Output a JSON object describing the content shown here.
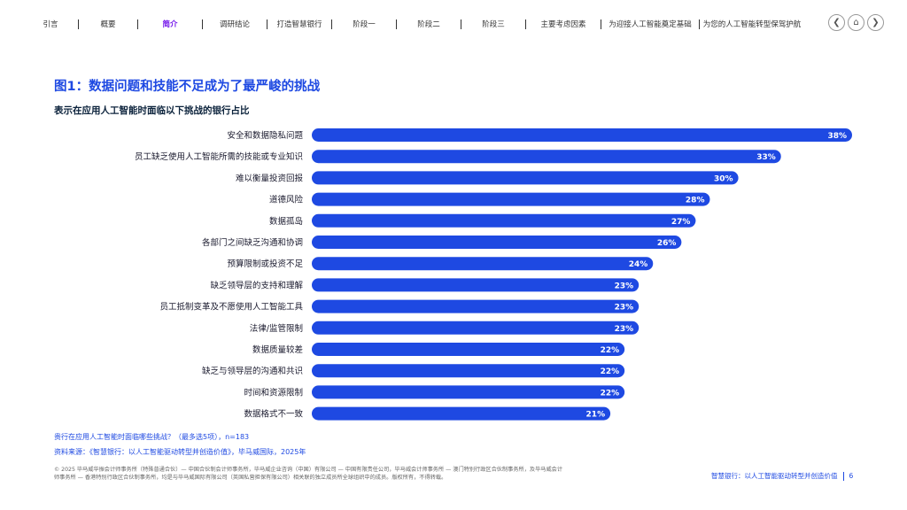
{
  "nav": {
    "items": [
      "引言",
      "概要",
      "简介",
      "调研结论",
      "打造智慧银行",
      "阶段一",
      "阶段二",
      "阶段三",
      "主要考虑因素",
      "为迎接人工智能奠定基础",
      "为您的人工智能转型保驾护航"
    ],
    "active_index": 2,
    "controls": [
      "prev-icon",
      "home-icon",
      "next-icon"
    ]
  },
  "figure": {
    "title": "图1：数据问题和技能不足成为了最严峻的挑战",
    "subtitle": "表示在应用人工智能时面临以下挑战的银行占比"
  },
  "chart_data": {
    "type": "bar",
    "orientation": "horizontal",
    "categories": [
      "安全和数据隐私问题",
      "员工缺乏使用人工智能所需的技能或专业知识",
      "难以衡量投资回报",
      "道德风险",
      "数据孤岛",
      "各部门之间缺乏沟通和协调",
      "预算限制或投资不足",
      "缺乏领导层的支持和理解",
      "员工抵制变革及不愿使用人工智能工具",
      "法律/监管限制",
      "数据质量较差",
      "缺乏与领导层的沟通和共识",
      "时间和资源限制",
      "数据格式不一致"
    ],
    "values": [
      38,
      33,
      30,
      28,
      27,
      26,
      24,
      23,
      23,
      23,
      22,
      22,
      22,
      21
    ],
    "value_labels": [
      "38%",
      "33%",
      "30%",
      "28%",
      "27%",
      "26%",
      "24%",
      "23%",
      "23%",
      "23%",
      "22%",
      "22%",
      "22%",
      "21%"
    ],
    "xlim": [
      0,
      38
    ],
    "bar_color": "#1e49e2"
  },
  "notes": {
    "question": "贵行在应用人工智能时面临哪些挑战？（最多选5项），n=183",
    "source": "资料来源：《智慧银行：以人工智能驱动转型并创造价值》，毕马威国际，2025年"
  },
  "footer": {
    "legal": "© 2025 毕马威华振会计师事务所（特殊普通合伙）— 中国合伙制会计师事务所，毕马威企业咨询（中国）有限公司 — 中国有限责任公司，毕马威会计师事务所 — 澳门特别行政区合伙制事务所，及毕马威会计师事务所 — 香港特别行政区合伙制事务所，均是与毕马威国际有限公司（英国私营担保有限公司）相关联的独立成员所全球组织中的成员。版权所有，不得转载。",
    "doc_title": "智慧银行：以人工智能驱动转型并创造价值",
    "page": "6"
  }
}
